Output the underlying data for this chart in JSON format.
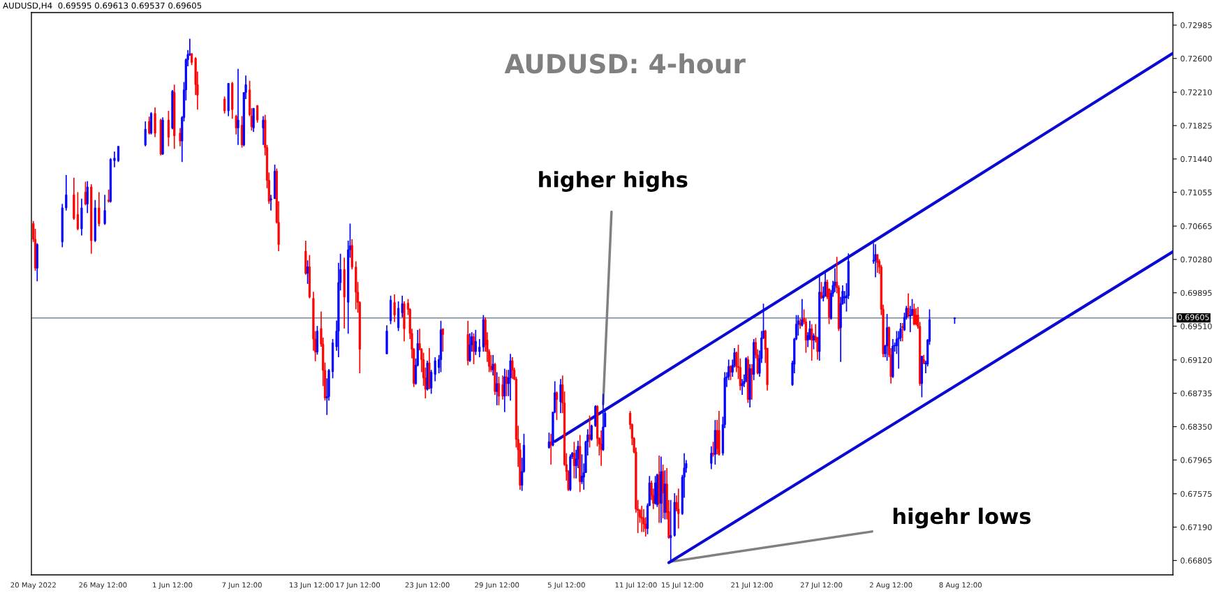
{
  "chart_data": {
    "type": "candlestick",
    "title": "AUDUSD: 4-hour",
    "annotations": [
      "AUDUSD,H4  0.69595 0.69613 0.69537 0.69605",
      {
        "text": "higher highs",
        "x": "2022-07-08T16:00",
        "y": 0.68608
      },
      {
        "text": "higehr lows",
        "x": "2022-07-14T12:00",
        "y": 0.66791
      }
    ],
    "colors": [
      "#ff0000",
      "#ff0000",
      "#0000ff",
      "#0000ff",
      "#0000ff",
      "#ff0000",
      "#ff0000",
      "#0000ff",
      "#ff0000",
      "#0000ff",
      "#ff0000",
      "#0000ff",
      "#ff0000",
      "#0000ff",
      "#ff0000",
      "#0000ff",
      "#0000ff",
      "#0000ff",
      "#0000ff",
      "#ff0000",
      "#0000ff",
      "#ff0000",
      "#ff0000",
      "#0000ff",
      "#ff0000",
      "#0000ff",
      "#ff0000",
      "#ff0000",
      "#0000ff",
      "#0000ff",
      "#0000ff",
      "#0000ff",
      "#0000ff",
      "#ff0000",
      "#ff0000",
      "#ff0000",
      "#ff0000",
      "#0000ff",
      "#ff0000",
      "#ff0000",
      "#0000ff",
      "#ff0000",
      "#0000ff",
      "#0000ff",
      "#ff0000",
      "#ff0000",
      "#0000ff",
      "#ff0000",
      "#0000ff",
      "#ff0000",
      "#ff0000",
      "#ff0000",
      "#0000ff",
      "#0000ff",
      "#ff0000",
      "#ff0000",
      "#ff0000",
      "#0000ff",
      "#ff0000",
      "#ff0000",
      "#ff0000",
      "#0000ff",
      "#ff0000",
      "#ff0000",
      "#ff0000",
      "#0000ff",
      "#0000ff",
      "#0000ff",
      "#0000ff",
      "#0000ff",
      "#0000ff",
      "#ff0000",
      "#0000ff",
      "#0000ff",
      "#ff0000",
      "#ff0000",
      "#ff0000",
      "#ff0000",
      "#0000ff",
      "#0000ff",
      "#ff0000",
      "#0000ff",
      "#0000ff",
      "#ff0000",
      "#ff0000",
      "#ff0000",
      "#ff0000",
      "#ff0000",
      "#0000ff",
      "#0000ff",
      "#ff0000",
      "#ff0000",
      "#ff0000",
      "#ff0000",
      "#0000ff",
      "#ff0000",
      "#0000ff",
      "#0000ff",
      "#0000ff",
      "#0000ff",
      "#ff0000",
      "#ff0000",
      "#0000ff",
      "#0000ff",
      "#ff0000",
      "#0000ff",
      "#0000ff",
      "#0000ff",
      "#ff0000",
      "#ff0000",
      "#ff0000",
      "#ff0000",
      "#0000ff",
      "#ff0000",
      "#0000ff",
      "#ff0000",
      "#ff0000",
      "#0000ff",
      "#ff0000",
      "#0000ff",
      "#0000ff",
      "#ff0000",
      "#ff0000",
      "#ff0000",
      "#ff0000",
      "#ff0000",
      "#0000ff",
      "#0000ff",
      "#0000ff",
      "#ff0000",
      "#0000ff",
      "#0000ff",
      "#ff0000",
      "#0000ff",
      "#ff0000",
      "#ff0000",
      "#ff0000",
      "#ff0000",
      "#0000ff",
      "#0000ff",
      "#ff0000",
      "#0000ff",
      "#0000ff",
      "#ff0000",
      "#0000ff",
      "#0000ff",
      "#0000ff",
      "#0000ff",
      "#ff0000",
      "#0000ff",
      "#0000ff",
      "#ff0000",
      "#ff0000",
      "#ff0000",
      "#0000ff",
      "#0000ff",
      "#ff0000",
      "#ff0000",
      "#ff0000",
      "#ff0000",
      "#ff0000",
      "#ff0000",
      "#ff0000",
      "#ff0000",
      "#ff0000",
      "#0000ff",
      "#0000ff",
      "#ff0000",
      "#ff0000",
      "#0000ff",
      "#0000ff",
      "#ff0000",
      "#0000ff",
      "#ff0000",
      "#0000ff",
      "#ff0000",
      "#ff0000",
      "#0000ff",
      "#0000ff",
      "#ff0000",
      "#ff0000",
      "#0000ff",
      "#0000ff",
      "#0000ff",
      "#0000ff",
      "#ff0000",
      "#0000ff",
      "#ff0000",
      "#ff0000",
      "#0000ff",
      "#0000ff",
      "#0000ff",
      "#0000ff",
      "#ff0000",
      "#0000ff",
      "#0000ff",
      "#ff0000",
      "#ff0000",
      "#ff0000",
      "#0000ff",
      "#0000ff",
      "#0000ff",
      "#ff0000",
      "#0000ff",
      "#ff0000",
      "#0000ff",
      "#ff0000",
      "#ff0000",
      "#0000ff",
      "#0000ff",
      "#0000ff",
      "#ff0000",
      "#ff0000",
      "#0000ff",
      "#0000ff",
      "#0000ff",
      "#0000ff",
      "#ff0000",
      "#0000ff",
      "#ff0000",
      "#ff0000",
      "#0000ff",
      "#0000ff",
      "#ff0000",
      "#0000ff",
      "#ff0000",
      "#ff0000",
      "#0000ff",
      "#ff0000",
      "#0000ff",
      "#0000ff",
      "#ff0000",
      "#ff0000",
      "#0000ff",
      "#0000ff",
      "#0000ff",
      "#ff0000",
      "#ff0000",
      "#0000ff",
      "#0000ff",
      "#0000ff",
      "#0000ff",
      "#0000ff",
      "#0000ff",
      "#0000ff",
      "#ff0000",
      "#ff0000",
      "#ff0000",
      "#ff0000",
      "#0000ff",
      "#0000ff",
      "#ff0000",
      "#ff0000",
      "#0000ff",
      "#0000ff",
      "#0000ff",
      "#0000ff",
      "#0000ff",
      "#ff0000",
      "#0000ff",
      "#0000ff",
      "#ff0000",
      "#0000ff",
      "#0000ff",
      "#ff0000",
      "#ff0000",
      "#ff0000",
      "#ff0000",
      "#0000ff",
      "#ff0000",
      "#0000ff",
      "#0000ff",
      "#0000ff",
      "#0000ff"
    ],
    "x": [
      "2022-05-20T12:00",
      "2022-05-20T16:00",
      "2022-05-20T20:00",
      "2022-05-23T00:00",
      "2022-05-23T08:00",
      "2022-05-24T00:00",
      "2022-05-24T08:00",
      "2022-05-24T16:00",
      "2022-05-25T00:00",
      "2022-05-25T04:00",
      "2022-05-25T12:00",
      "2022-05-25T20:00",
      "2022-05-26T04:00",
      "2022-05-26T16:00",
      "2022-05-27T00:00",
      "2022-05-27T04:00",
      "2022-05-27T12:00",
      "2022-05-27T20:00",
      "2022-05-30T04:00",
      "2022-05-30T12:00",
      "2022-05-30T16:00",
      "2022-05-31T00:00",
      "2022-05-31T12:00",
      "2022-05-31T16:00",
      "2022-06-01T04:00",
      "2022-06-01T12:00",
      "2022-06-01T16:00",
      "2022-06-02T04:00",
      "2022-06-02T08:00",
      "2022-06-02T12:00",
      "2022-06-02T16:00",
      "2022-06-02T20:00",
      "2022-06-03T00:00",
      "2022-06-03T04:00",
      "2022-06-03T12:00",
      "2022-06-03T16:00",
      "2022-06-06T00:00",
      "2022-06-06T08:00",
      "2022-06-06T16:00",
      "2022-06-07T00:00",
      "2022-06-07T04:00",
      "2022-06-07T12:00",
      "2022-06-07T16:00",
      "2022-06-07T20:00",
      "2022-06-08T04:00",
      "2022-06-08T08:00",
      "2022-06-08T12:00",
      "2022-06-08T20:00",
      "2022-06-09T08:00",
      "2022-06-09T12:00",
      "2022-06-09T16:00",
      "2022-06-09T20:00",
      "2022-06-10T00:00",
      "2022-06-10T08:00",
      "2022-06-10T12:00",
      "2022-06-10T16:00",
      "2022-06-13T00:00",
      "2022-06-13T04:00",
      "2022-06-13T08:00",
      "2022-06-13T16:00",
      "2022-06-13T20:00",
      "2022-06-14T00:00",
      "2022-06-14T08:00",
      "2022-06-14T12:00",
      "2022-06-14T16:00",
      "2022-06-14T20:00",
      "2022-06-15T00:00",
      "2022-06-15T08:00",
      "2022-06-15T16:00",
      "2022-06-15T20:00",
      "2022-06-16T00:00",
      "2022-06-16T08:00",
      "2022-06-16T16:00",
      "2022-06-16T20:00",
      "2022-06-17T00:00",
      "2022-06-17T08:00",
      "2022-06-17T12:00",
      "2022-06-17T16:00",
      "2022-06-20T00:00",
      "2022-06-20T08:00",
      "2022-06-20T16:00",
      "2022-06-21T00:00",
      "2022-06-21T08:00",
      "2022-06-21T12:00",
      "2022-06-21T20:00",
      "2022-06-22T00:00",
      "2022-06-22T04:00",
      "2022-06-22T08:00",
      "2022-06-22T12:00",
      "2022-06-22T16:00",
      "2022-06-22T20:00",
      "2022-06-23T00:00",
      "2022-06-23T04:00",
      "2022-06-23T08:00",
      "2022-06-23T12:00",
      "2022-06-23T16:00",
      "2022-06-23T20:00",
      "2022-06-24T04:00",
      "2022-06-24T12:00",
      "2022-06-24T16:00",
      "2022-06-24T20:00",
      "2022-06-27T00:00",
      "2022-06-27T04:00",
      "2022-06-27T08:00",
      "2022-06-27T12:00",
      "2022-06-27T16:00",
      "2022-06-28T00:00",
      "2022-06-28T08:00",
      "2022-06-28T12:00",
      "2022-06-28T16:00",
      "2022-06-28T20:00",
      "2022-06-29T00:00",
      "2022-06-29T04:00",
      "2022-06-29T08:00",
      "2022-06-29T12:00",
      "2022-06-29T16:00",
      "2022-06-30T00:00",
      "2022-06-30T04:00",
      "2022-06-30T08:00",
      "2022-06-30T12:00",
      "2022-06-30T16:00",
      "2022-06-30T20:00",
      "2022-07-01T00:00",
      "2022-07-01T04:00",
      "2022-07-01T08:00",
      "2022-07-01T12:00",
      "2022-07-01T16:00",
      "2022-07-01T20:00",
      "2022-07-04T00:00",
      "2022-07-04T04:00",
      "2022-07-04T08:00",
      "2022-07-04T12:00",
      "2022-07-04T16:00",
      "2022-07-05T00:00",
      "2022-07-05T04:00",
      "2022-07-05T08:00",
      "2022-07-05T12:00",
      "2022-07-05T16:00",
      "2022-07-05T20:00",
      "2022-07-06T00:00",
      "2022-07-06T04:00",
      "2022-07-06T08:00",
      "2022-07-06T12:00",
      "2022-07-06T16:00",
      "2022-07-06T20:00",
      "2022-07-07T00:00",
      "2022-07-07T04:00",
      "2022-07-07T08:00",
      "2022-07-07T12:00",
      "2022-07-07T16:00",
      "2022-07-08T00:00",
      "2022-07-08T04:00",
      "2022-07-08T08:00",
      "2022-07-08T12:00",
      "2022-07-08T16:00",
      "2022-07-08T20:00",
      "2022-07-11T00:00",
      "2022-07-11T04:00",
      "2022-07-11T08:00",
      "2022-07-11T12:00",
      "2022-07-11T16:00",
      "2022-07-11T20:00",
      "2022-07-12T00:00",
      "2022-07-12T04:00",
      "2022-07-12T08:00",
      "2022-07-12T12:00",
      "2022-07-12T16:00",
      "2022-07-12T20:00",
      "2022-07-13T00:00",
      "2022-07-13T04:00",
      "2022-07-13T08:00",
      "2022-07-13T12:00",
      "2022-07-13T16:00",
      "2022-07-13T20:00",
      "2022-07-14T00:00",
      "2022-07-14T04:00",
      "2022-07-14T08:00",
      "2022-07-14T12:00",
      "2022-07-14T20:00",
      "2022-07-15T00:00",
      "2022-07-15T04:00",
      "2022-07-15T12:00",
      "2022-07-15T16:00",
      "2022-07-15T20:00",
      "2022-07-18T00:00",
      "2022-07-18T04:00",
      "2022-07-18T08:00",
      "2022-07-18T12:00",
      "2022-07-18T16:00",
      "2022-07-19T00:00",
      "2022-07-19T04:00",
      "2022-07-19T08:00",
      "2022-07-19T12:00",
      "2022-07-19T16:00",
      "2022-07-19T20:00",
      "2022-07-20T00:00",
      "2022-07-20T04:00",
      "2022-07-20T08:00",
      "2022-07-20T12:00",
      "2022-07-20T16:00",
      "2022-07-20T20:00",
      "2022-07-21T00:00",
      "2022-07-21T04:00",
      "2022-07-21T08:00",
      "2022-07-21T12:00",
      "2022-07-21T16:00",
      "2022-07-21T20:00",
      "2022-07-22T00:00",
      "2022-07-22T04:00",
      "2022-07-22T08:00",
      "2022-07-22T12:00",
      "2022-07-22T16:00",
      "2022-07-22T20:00",
      "2022-07-25T00:00",
      "2022-07-25T04:00",
      "2022-07-25T08:00",
      "2022-07-25T12:00",
      "2022-07-25T16:00",
      "2022-07-25T20:00",
      "2022-07-26T00:00",
      "2022-07-26T04:00",
      "2022-07-26T08:00",
      "2022-07-26T12:00",
      "2022-07-26T16:00",
      "2022-07-26T20:00",
      "2022-07-27T00:00",
      "2022-07-27T04:00",
      "2022-07-27T08:00",
      "2022-07-27T12:00",
      "2022-07-27T16:00",
      "2022-07-27T20:00",
      "2022-07-28T00:00",
      "2022-07-28T04:00",
      "2022-07-28T08:00",
      "2022-07-28T12:00",
      "2022-07-28T16:00",
      "2022-07-28T20:00",
      "2022-07-29T00:00",
      "2022-07-29T04:00",
      "2022-07-29T08:00",
      "2022-07-29T12:00",
      "2022-07-29T16:00",
      "2022-07-29T20:00",
      "2022-08-01T00:00",
      "2022-08-01T04:00",
      "2022-08-01T08:00",
      "2022-08-01T12:00",
      "2022-08-01T16:00",
      "2022-08-01T20:00",
      "2022-08-02T00:00",
      "2022-08-02T04:00",
      "2022-08-02T08:00",
      "2022-08-02T12:00",
      "2022-08-02T16:00",
      "2022-08-02T20:00",
      "2022-08-03T00:00",
      "2022-08-03T04:00",
      "2022-08-03T08:00",
      "2022-08-03T12:00",
      "2022-08-03T16:00",
      "2022-08-03T20:00",
      "2022-08-04T00:00",
      "2022-08-04T04:00",
      "2022-08-04T08:00",
      "2022-08-04T12:00",
      "2022-08-04T16:00",
      "2022-08-04T20:00",
      "2022-08-05T00:00",
      "2022-08-05T04:00",
      "2022-08-05T08:00",
      "2022-08-05T12:00",
      "2022-08-05T16:00",
      "2022-08-05T20:00",
      "2022-08-08T00:00"
    ],
    "ohlc": [
      [
        0.70694,
        0.70724,
        0.70482,
        0.70512
      ],
      [
        0.70512,
        0.70633,
        0.70149,
        0.7018
      ],
      [
        0.7018,
        0.70467,
        0.70028,
        0.70452
      ],
      [
        0.70482,
        0.70921,
        0.70421,
        0.70875
      ],
      [
        0.70875,
        0.71254,
        0.70845,
        0.71026
      ],
      [
        0.71026,
        0.71223,
        0.70739,
        0.70754
      ],
      [
        0.708,
        0.71057,
        0.70618,
        0.70633
      ],
      [
        0.70633,
        0.70981,
        0.70557,
        0.70875
      ],
      [
        0.71057,
        0.71178,
        0.70905,
        0.70921
      ],
      [
        0.70921,
        0.71184,
        0.70815,
        0.71117
      ],
      [
        0.71117,
        0.71148,
        0.70346,
        0.70497
      ],
      [
        0.70497,
        0.70966,
        0.70482,
        0.70875
      ],
      [
        0.70875,
        0.71057,
        0.70663,
        0.70694
      ],
      [
        0.70694,
        0.71026,
        0.70679,
        0.70845
      ],
      [
        0.70966,
        0.71087,
        0.70936,
        0.70951
      ],
      [
        0.70951,
        0.7145,
        0.70936,
        0.71435
      ],
      [
        0.7142,
        0.71526,
        0.71344,
        0.7145
      ],
      [
        0.7142,
        0.71586,
        0.71405,
        0.71586
      ],
      [
        0.71602,
        0.71874,
        0.71586,
        0.71783
      ],
      [
        0.71874,
        0.71928,
        0.71723,
        0.71738
      ],
      [
        0.71738,
        0.7198,
        0.71723,
        0.71965
      ],
      [
        0.71965,
        0.72034,
        0.71692,
        0.71738
      ],
      [
        0.71889,
        0.71904,
        0.71481,
        0.71496
      ],
      [
        0.71496,
        0.71919,
        0.71487,
        0.71889
      ],
      [
        0.71889,
        0.71995,
        0.71586,
        0.71692
      ],
      [
        0.71798,
        0.72237,
        0.71783,
        0.72222
      ],
      [
        0.72207,
        0.72298,
        0.71556,
        0.71707
      ],
      [
        0.71738,
        0.71798,
        0.71586,
        0.71647
      ],
      [
        0.71647,
        0.71934,
        0.71405,
        0.71919
      ],
      [
        0.71919,
        0.72328,
        0.71874,
        0.72237
      ],
      [
        0.72237,
        0.726,
        0.72116,
        0.72585
      ],
      [
        0.72585,
        0.72697,
        0.72509,
        0.72646
      ],
      [
        0.72646,
        0.72827,
        0.7263,
        0.72655
      ],
      [
        0.72655,
        0.72661,
        0.72524,
        0.72555
      ],
      [
        0.726,
        0.72615,
        0.72177,
        0.72298
      ],
      [
        0.72298,
        0.72449,
        0.7201,
        0.72177
      ],
      [
        0.72131,
        0.72161,
        0.71965,
        0.71995
      ],
      [
        0.71995,
        0.72313,
        0.71934,
        0.72313
      ],
      [
        0.72313,
        0.72328,
        0.71904,
        0.7201
      ],
      [
        0.71934,
        0.7195,
        0.71723,
        0.71798
      ],
      [
        0.71798,
        0.72479,
        0.71602,
        0.71889
      ],
      [
        0.71829,
        0.71934,
        0.71571,
        0.71602
      ],
      [
        0.71602,
        0.72207,
        0.71586,
        0.72207
      ],
      [
        0.72207,
        0.72403,
        0.72131,
        0.72298
      ],
      [
        0.72237,
        0.72343,
        0.71934,
        0.7195
      ],
      [
        0.71934,
        0.72025,
        0.71768,
        0.71813
      ],
      [
        0.71798,
        0.72025,
        0.71753,
        0.72025
      ],
      [
        0.72055,
        0.72062,
        0.71859,
        0.71889
      ],
      [
        0.71798,
        0.71934,
        0.71602,
        0.71889
      ],
      [
        0.71889,
        0.7195,
        0.71481,
        0.71571
      ],
      [
        0.71571,
        0.71602,
        0.71102,
        0.71193
      ],
      [
        0.71193,
        0.71284,
        0.70921,
        0.70951
      ],
      [
        0.70966,
        0.71026,
        0.70845,
        0.70981
      ],
      [
        0.70981,
        0.71375,
        0.70981,
        0.71299
      ],
      [
        0.71299,
        0.71329,
        0.70694,
        0.70709
      ],
      [
        0.70709,
        0.70951,
        0.70376,
        0.70452
      ],
      [
        0.70376,
        0.70497,
        0.70104,
        0.70119
      ],
      [
        0.70119,
        0.7027,
        0.69998,
        0.70195
      ],
      [
        0.70195,
        0.70331,
        0.69831,
        0.69846
      ],
      [
        0.69831,
        0.69907,
        0.69226,
        0.69362
      ],
      [
        0.69362,
        0.69453,
        0.69105,
        0.69211
      ],
      [
        0.69211,
        0.69513,
        0.69181,
        0.69453
      ],
      [
        0.69483,
        0.6968,
        0.69272,
        0.69302
      ],
      [
        0.69302,
        0.69377,
        0.68818,
        0.68999
      ],
      [
        0.68999,
        0.6909,
        0.68651,
        0.68681
      ],
      [
        0.68681,
        0.68908,
        0.68485,
        0.68697
      ],
      [
        0.68697,
        0.69015,
        0.68651,
        0.68999
      ],
      [
        0.68984,
        0.69362,
        0.68908,
        0.69317
      ],
      [
        0.69272,
        0.69574,
        0.69226,
        0.69453
      ],
      [
        0.69453,
        0.7024,
        0.69151,
        0.70013
      ],
      [
        0.70013,
        0.70346,
        0.69922,
        0.70164
      ],
      [
        0.70164,
        0.703,
        0.69483,
        0.69846
      ],
      [
        0.69786,
        0.70497,
        0.69423,
        0.70391
      ],
      [
        0.70391,
        0.70694,
        0.703,
        0.70437
      ],
      [
        0.70442,
        0.70513,
        0.70165,
        0.70192
      ],
      [
        0.70192,
        0.70258,
        0.69704,
        0.69902
      ],
      [
        0.69902,
        0.7002,
        0.69665,
        0.69783
      ],
      [
        0.69783,
        0.69796,
        0.68966,
        0.69243
      ],
      [
        0.6919,
        0.6952,
        0.6919,
        0.69454
      ],
      [
        0.69572,
        0.69862,
        0.69533,
        0.6981
      ],
      [
        0.69783,
        0.69876,
        0.69559,
        0.69638
      ],
      [
        0.69493,
        0.69796,
        0.69454,
        0.69717
      ],
      [
        0.69664,
        0.69862,
        0.69612,
        0.6977
      ],
      [
        0.6977,
        0.69796,
        0.69335,
        0.6948
      ],
      [
        0.69775,
        0.69823,
        0.69638,
        0.69704
      ],
      [
        0.69704,
        0.69717,
        0.69361,
        0.69427
      ],
      [
        0.69427,
        0.6948,
        0.69137,
        0.69243
      ],
      [
        0.69243,
        0.69256,
        0.68808,
        0.68847
      ],
      [
        0.68847,
        0.69137,
        0.68834,
        0.69058
      ],
      [
        0.69058,
        0.69467,
        0.69045,
        0.69309
      ],
      [
        0.69309,
        0.6948,
        0.6923,
        0.69243
      ],
      [
        0.69243,
        0.69256,
        0.68979,
        0.69124
      ],
      [
        0.69124,
        0.69203,
        0.68821,
        0.68913
      ],
      [
        0.68913,
        0.69032,
        0.68676,
        0.68781
      ],
      [
        0.68781,
        0.69111,
        0.68768,
        0.69085
      ],
      [
        0.69085,
        0.69256,
        0.68781,
        0.68795
      ],
      [
        0.68795,
        0.69005,
        0.68729,
        0.68979
      ],
      [
        0.68953,
        0.69151,
        0.68874,
        0.69111
      ],
      [
        0.69032,
        0.69177,
        0.68966,
        0.69124
      ],
      [
        0.69124,
        0.69572,
        0.68979,
        0.69467
      ],
      [
        0.6948,
        0.6948,
        0.69216,
        0.69414
      ],
      [
        0.69414,
        0.69572,
        0.69058,
        0.69111
      ],
      [
        0.69111,
        0.69427,
        0.69098,
        0.69295
      ],
      [
        0.69295,
        0.6944,
        0.69216,
        0.69388
      ],
      [
        0.69388,
        0.69427,
        0.69071,
        0.69216
      ],
      [
        0.69216,
        0.69467,
        0.69177,
        0.69335
      ],
      [
        0.69216,
        0.69361,
        0.69151,
        0.69269
      ],
      [
        0.69269,
        0.69638,
        0.69216,
        0.69586
      ],
      [
        0.69586,
        0.69612,
        0.69216,
        0.69295
      ],
      [
        0.69348,
        0.6944,
        0.69098,
        0.69216
      ],
      [
        0.69216,
        0.69243,
        0.68979,
        0.69045
      ],
      [
        0.69045,
        0.69177,
        0.68979,
        0.69005
      ],
      [
        0.69005,
        0.69177,
        0.6894,
        0.69071
      ],
      [
        0.69071,
        0.69085,
        0.68716,
        0.68755
      ],
      [
        0.68755,
        0.68979,
        0.68597,
        0.68847
      ],
      [
        0.68847,
        0.68926,
        0.68597,
        0.68702
      ],
      [
        0.68834,
        0.6894,
        0.68663,
        0.68702
      ],
      [
        0.68702,
        0.69019,
        0.68518,
        0.68926
      ],
      [
        0.68926,
        0.69005,
        0.68702,
        0.68847
      ],
      [
        0.68847,
        0.69005,
        0.68702,
        0.68913
      ],
      [
        0.68913,
        0.6919,
        0.6865,
        0.69111
      ],
      [
        0.69111,
        0.69151,
        0.689,
        0.69005
      ],
      [
        0.69005,
        0.69032,
        0.68887,
        0.689
      ],
      [
        0.689,
        0.68926,
        0.68109,
        0.68202
      ],
      [
        0.68202,
        0.6836,
        0.67885,
        0.68083
      ],
      [
        0.68083,
        0.68162,
        0.67622,
        0.67674
      ],
      [
        0.67674,
        0.67991,
        0.67608,
        0.67832
      ],
      [
        0.67832,
        0.68268,
        0.67819,
        0.68136
      ],
      [
        0.68109,
        0.68281,
        0.68096,
        0.68175
      ],
      [
        0.68175,
        0.68268,
        0.67912,
        0.68136
      ],
      [
        0.68136,
        0.68518,
        0.68123,
        0.68518
      ],
      [
        0.68518,
        0.68874,
        0.68505,
        0.68742
      ],
      [
        0.68742,
        0.68755,
        0.68426,
        0.68663
      ],
      [
        0.68637,
        0.689,
        0.68505,
        0.68834
      ],
      [
        0.68834,
        0.6894,
        0.68505,
        0.68623
      ],
      [
        0.68623,
        0.68755,
        0.67898,
        0.67912
      ],
      [
        0.67912,
        0.68043,
        0.67727,
        0.67832
      ],
      [
        0.67832,
        0.67846,
        0.67608,
        0.67622
      ],
      [
        0.67622,
        0.6803,
        0.67608,
        0.68004
      ],
      [
        0.68004,
        0.68057,
        0.67977,
        0.68043
      ],
      [
        0.68043,
        0.68175,
        0.67753,
        0.67898
      ],
      [
        0.67898,
        0.68083,
        0.67753,
        0.67977
      ],
      [
        0.67977,
        0.68188,
        0.67872,
        0.68123
      ],
      [
        0.68123,
        0.68254,
        0.67595,
        0.67714
      ],
      [
        0.67714,
        0.6803,
        0.67687,
        0.6778
      ],
      [
        0.67766,
        0.67925,
        0.67622,
        0.67819
      ],
      [
        0.67819,
        0.68188,
        0.67819,
        0.68175
      ],
      [
        0.68175,
        0.6832,
        0.68017,
        0.68254
      ],
      [
        0.68254,
        0.68478,
        0.68109,
        0.68202
      ],
      [
        0.68202,
        0.68373,
        0.68188,
        0.6836
      ],
      [
        0.6836,
        0.68597,
        0.68347,
        0.68584
      ],
      [
        0.68584,
        0.68597,
        0.68123,
        0.68215
      ],
      [
        0.68215,
        0.68228,
        0.68017,
        0.68149
      ],
      [
        0.68149,
        0.68307,
        0.67898,
        0.68083
      ],
      [
        0.68083,
        0.68729,
        0.6807,
        0.68347
      ],
      [
        0.68347,
        0.68531,
        0.68347,
        0.68505
      ],
      [
        0.68505,
        0.68531,
        0.6832,
        0.68373
      ],
      [
        0.68373,
        0.68386,
        0.68136,
        0.68215
      ],
      [
        0.68215,
        0.68228,
        0.68043,
        0.68057
      ],
      [
        0.68057,
        0.68109,
        0.67358,
        0.67398
      ],
      [
        0.67398,
        0.67503,
        0.67121,
        0.67384
      ],
      [
        0.67384,
        0.67398,
        0.6724,
        0.67305
      ],
      [
        0.67305,
        0.67437,
        0.67134,
        0.67292
      ],
      [
        0.67292,
        0.67398,
        0.67134,
        0.67226
      ],
      [
        0.67226,
        0.67305,
        0.67081,
        0.67173
      ],
      [
        0.67173,
        0.67464,
        0.67108,
        0.67437
      ],
      [
        0.67437,
        0.6778,
        0.67437,
        0.67701
      ],
      [
        0.67701,
        0.67727,
        0.67503,
        0.67556
      ],
      [
        0.67556,
        0.67635,
        0.67398,
        0.67464
      ],
      [
        0.67464,
        0.6778,
        0.6745,
        0.67701
      ],
      [
        0.6745,
        0.67806,
        0.67423,
        0.67793
      ],
      [
        0.67793,
        0.68017,
        0.67239,
        0.67463
      ],
      [
        0.67463,
        0.68004,
        0.67239,
        0.67832
      ],
      [
        0.67832,
        0.67912,
        0.67292,
        0.67582
      ],
      [
        0.67358,
        0.67846,
        0.67279,
        0.67688
      ],
      [
        0.67688,
        0.67872,
        0.67279,
        0.67358
      ],
      [
        0.67371,
        0.67503,
        0.67055,
        0.67068
      ],
      [
        0.67068,
        0.67503,
        0.66791,
        0.67094
      ],
      [
        0.67094,
        0.67582,
        0.67081,
        0.67477
      ],
      [
        0.67477,
        0.67556,
        0.67371,
        0.67398
      ],
      [
        0.67398,
        0.67635,
        0.67173,
        0.67345
      ],
      [
        0.67345,
        0.67793,
        0.67332,
        0.67767
      ],
      [
        0.67767,
        0.68043,
        0.67529,
        0.67872
      ],
      [
        0.67872,
        0.67964,
        0.67819,
        0.67925
      ],
      [
        0.67925,
        0.68123,
        0.67859,
        0.68043
      ],
      [
        0.68043,
        0.68175,
        0.68004,
        0.6803
      ],
      [
        0.6803,
        0.68426,
        0.67912,
        0.68307
      ],
      [
        0.68307,
        0.68426,
        0.6803,
        0.68096
      ],
      [
        0.68307,
        0.68531,
        0.68017,
        0.6803
      ],
      [
        0.68043,
        0.68465,
        0.68017,
        0.68373
      ],
      [
        0.68373,
        0.68979,
        0.68333,
        0.68913
      ],
      [
        0.68913,
        0.68979,
        0.68808,
        0.68926
      ],
      [
        0.68926,
        0.69124,
        0.68887,
        0.69045
      ],
      [
        0.69045,
        0.69058,
        0.68887,
        0.68979
      ],
      [
        0.68979,
        0.69124,
        0.68926,
        0.69058
      ],
      [
        0.69058,
        0.69256,
        0.69032,
        0.69203
      ],
      [
        0.69203,
        0.69216,
        0.68979,
        0.69045
      ],
      [
        0.69045,
        0.69295,
        0.689,
        0.69032
      ],
      [
        0.69032,
        0.69137,
        0.68768,
        0.68821
      ],
      [
        0.68821,
        0.689,
        0.68716,
        0.68847
      ],
      [
        0.68847,
        0.68953,
        0.68808,
        0.68874
      ],
      [
        0.68874,
        0.69151,
        0.68861,
        0.69137
      ],
      [
        0.69124,
        0.69164,
        0.68623,
        0.68663
      ],
      [
        0.68663,
        0.69071,
        0.68571,
        0.69019
      ],
      [
        0.69019,
        0.69071,
        0.68663,
        0.68953
      ],
      [
        0.68953,
        0.69361,
        0.68887,
        0.69322
      ],
      [
        0.69322,
        0.69375,
        0.69137,
        0.69177
      ],
      [
        0.69177,
        0.69243,
        0.68953,
        0.68966
      ],
      [
        0.68966,
        0.6923,
        0.68926,
        0.69137
      ],
      [
        0.69137,
        0.69454,
        0.69085,
        0.69375
      ],
      [
        0.69375,
        0.6977,
        0.69361,
        0.69454
      ],
      [
        0.69454,
        0.69467,
        0.69085,
        0.69243
      ],
      [
        0.69256,
        0.69256,
        0.68768,
        0.68834
      ],
      [
        0.68834,
        0.69111,
        0.68821,
        0.69085
      ],
      [
        0.69071,
        0.69375,
        0.68966,
        0.69361
      ],
      [
        0.69361,
        0.69638,
        0.69348,
        0.69533
      ],
      [
        0.69533,
        0.69638,
        0.69401,
        0.69572
      ],
      [
        0.69546,
        0.69599,
        0.6948,
        0.6952
      ],
      [
        0.6952,
        0.69823,
        0.69506,
        0.69586
      ],
      [
        0.69599,
        0.69704,
        0.69533,
        0.69559
      ],
      [
        0.69559,
        0.69599,
        0.69203,
        0.69348
      ],
      [
        0.69348,
        0.6944,
        0.69269,
        0.69401
      ],
      [
        0.69361,
        0.69572,
        0.69348,
        0.6948
      ],
      [
        0.6948,
        0.69533,
        0.69111,
        0.69348
      ],
      [
        0.69348,
        0.69427,
        0.69243,
        0.69401
      ],
      [
        0.69388,
        0.69533,
        0.69322,
        0.69348
      ],
      [
        0.69375,
        0.69388,
        0.69124,
        0.69216
      ],
      [
        0.69216,
        0.70113,
        0.69111,
        0.69902
      ],
      [
        0.69902,
        0.7002,
        0.69823,
        0.69836
      ],
      [
        0.69836,
        0.69968,
        0.69796,
        0.69862
      ],
      [
        0.69862,
        0.70126,
        0.69849,
        0.7002
      ],
      [
        0.7002,
        0.70047,
        0.69823,
        0.69849
      ],
      [
        0.69941,
        0.69941,
        0.69533,
        0.69612
      ],
      [
        0.69599,
        0.69928,
        0.69585,
        0.69889
      ],
      [
        0.69889,
        0.70034,
        0.69849,
        0.69981
      ],
      [
        0.69981,
        0.70179,
        0.69902,
        0.7002
      ],
      [
        0.7002,
        0.7031,
        0.69889,
        0.69955
      ],
      [
        0.69955,
        0.69981,
        0.69454,
        0.6948
      ],
      [
        0.69493,
        0.69849,
        0.69097,
        0.6977
      ],
      [
        0.6977,
        0.69981,
        0.69757,
        0.69915
      ],
      [
        0.69836,
        0.69915,
        0.6977,
        0.69849
      ],
      [
        0.69836,
        0.70007,
        0.69678,
        0.69862
      ],
      [
        0.69862,
        0.7035,
        0.69823,
        0.70258
      ],
      [
        0.70258,
        0.70468,
        0.70231,
        0.70271
      ],
      [
        0.70271,
        0.70455,
        0.70073,
        0.70337
      ],
      [
        0.70337,
        0.70337,
        0.70126,
        0.70244
      ],
      [
        0.70258,
        0.70284,
        0.70113,
        0.70192
      ],
      [
        0.70192,
        0.70218,
        0.69638,
        0.69704
      ],
      [
        0.69704,
        0.69757,
        0.69151,
        0.6919
      ],
      [
        0.6919,
        0.69295,
        0.69151,
        0.69282
      ],
      [
        0.69282,
        0.69651,
        0.69111,
        0.69493
      ],
      [
        0.69493,
        0.69506,
        0.69151,
        0.69177
      ],
      [
        0.69177,
        0.69256,
        0.68847,
        0.68926
      ],
      [
        0.68926,
        0.69361,
        0.68913,
        0.69282
      ],
      [
        0.69282,
        0.69322,
        0.69216,
        0.6929
      ],
      [
        0.69282,
        0.69454,
        0.6919,
        0.69361
      ],
      [
        0.69361,
        0.69454,
        0.69019,
        0.69375
      ],
      [
        0.69375,
        0.69546,
        0.69335,
        0.6948
      ],
      [
        0.69506,
        0.69546,
        0.69335,
        0.69493
      ],
      [
        0.69467,
        0.69665,
        0.69454,
        0.69612
      ],
      [
        0.69612,
        0.69744,
        0.69585,
        0.69717
      ],
      [
        0.69717,
        0.69889,
        0.69612,
        0.69625
      ],
      [
        0.69625,
        0.69744,
        0.69441,
        0.69638
      ],
      [
        0.69638,
        0.69823,
        0.69625,
        0.69704
      ],
      [
        0.69704,
        0.6977,
        0.6952,
        0.69533
      ],
      [
        0.69638,
        0.69717,
        0.6952,
        0.69533
      ],
      [
        0.69638,
        0.69731,
        0.6948,
        0.69506
      ],
      [
        0.69506,
        0.69559,
        0.68821,
        0.68847
      ],
      [
        0.68847,
        0.69164,
        0.68689,
        0.69164
      ],
      [
        0.69124,
        0.69177,
        0.69071,
        0.69085
      ],
      [
        0.69071,
        0.69111,
        0.68966,
        0.69085
      ],
      [
        0.69071,
        0.69361,
        0.69045,
        0.69348
      ],
      [
        0.69335,
        0.69704,
        0.69295,
        0.69586
      ],
      [
        0.69595,
        0.69613,
        0.69537,
        0.69605
      ]
    ],
    "series": [
      {
        "type": "line",
        "color": "#0a0ad2",
        "x": [
          "2022-07-04T12:00",
          "2022-08-26T20:00"
        ],
        "values": [
          0.6818,
          0.7266
        ]
      },
      {
        "type": "line",
        "color": "#0a0ad2",
        "x": [
          "2022-07-14T08:00",
          "2022-08-26T20:00"
        ],
        "values": [
          0.6678,
          0.7037
        ]
      }
    ],
    "ref_lines": [
      {
        "axis": "y",
        "value": 0.69605,
        "label": "0.69605",
        "color": "#778899"
      }
    ],
    "xlim": [
      "2022-05-20T08:00",
      "2022-08-26T20:00"
    ],
    "xticks": [
      {
        "value": "2022-05-20T12:00",
        "label": "20 May 2022"
      },
      {
        "value": "2022-05-26T12:00",
        "label": "26 May 12:00"
      },
      {
        "value": "2022-06-01T12:00",
        "label": "1 Jun 12:00"
      },
      {
        "value": "2022-06-07T12:00",
        "label": "7 Jun 12:00"
      },
      {
        "value": "2022-06-13T12:00",
        "label": "13 Jun 12:00"
      },
      {
        "value": "2022-06-17T12:00",
        "label": "17 Jun 12:00"
      },
      {
        "value": "2022-06-23T12:00",
        "label": "23 Jun 12:00"
      },
      {
        "value": "2022-06-29T12:00",
        "label": "29 Jun 12:00"
      },
      {
        "value": "2022-07-05T12:00",
        "label": "5 Jul 12:00"
      },
      {
        "value": "2022-07-11T12:00",
        "label": "11 Jul 12:00"
      },
      {
        "value": "2022-07-15T12:00",
        "label": "15 Jul 12:00"
      },
      {
        "value": "2022-07-21T12:00",
        "label": "21 Jul 12:00"
      },
      {
        "value": "2022-07-27T12:00",
        "label": "27 Jul 12:00"
      },
      {
        "value": "2022-08-02T12:00",
        "label": "2 Aug 12:00"
      },
      {
        "value": "2022-08-08T12:00",
        "label": "8 Aug 12:00"
      }
    ],
    "ylim": [
      0.66639,
      0.7313
    ],
    "yticks": [
      0.66805,
      {
        "value": 0.6719,
        "label": "0.67190"
      },
      0.67575,
      {
        "value": 0.67965,
        "label": "0.67965"
      },
      {
        "value": 0.6835,
        "label": "0.68350"
      },
      0.68735,
      {
        "value": 0.6912,
        "label": "0.69120"
      },
      {
        "value": 0.6951,
        "label": "0.69510"
      },
      0.69895,
      {
        "value": 0.7028,
        "label": "0.70280"
      },
      0.70665,
      0.71055,
      {
        "value": 0.7144,
        "label": "0.71440"
      },
      0.71825,
      {
        "value": 0.7221,
        "label": "0.72210"
      },
      {
        "value": 0.726,
        "label": "0.72600"
      },
      0.72985
    ],
    "grid": false,
    "legend": false
  }
}
